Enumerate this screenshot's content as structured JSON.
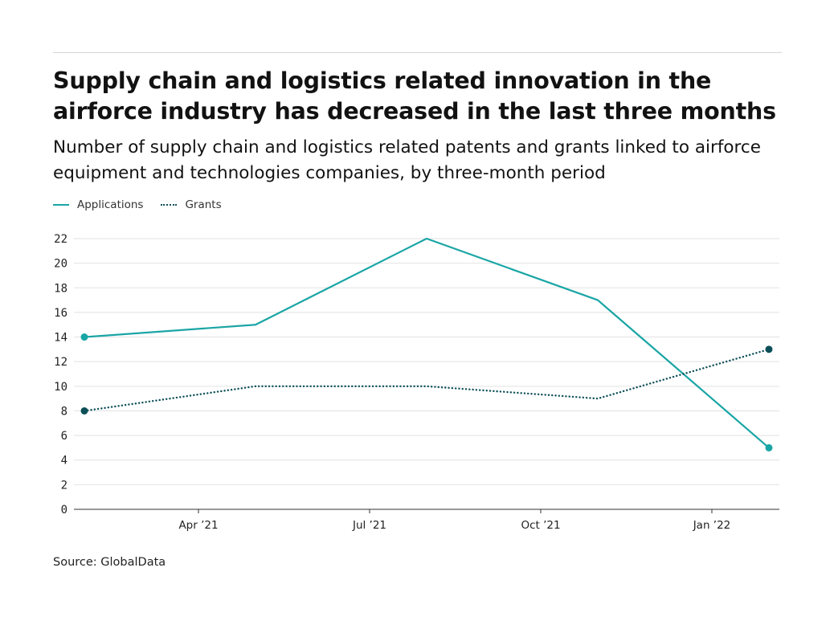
{
  "title": "Supply chain and logistics related innovation in the airforce industry has decreased in the last three months",
  "subtitle": "Number of supply chain and logistics related patents and grants linked to airforce equipment and technologies companies, by three-month period",
  "source": "Source: GlobalData",
  "colors": {
    "applications": "#1aa5a5",
    "grants": "#0d4f58",
    "grid": "#e2e2e2",
    "axis": "#333333"
  },
  "chart_data": {
    "type": "line",
    "x": [
      "2021-02",
      "2021-05",
      "2021-08",
      "2021-11",
      "2022-02"
    ],
    "series": [
      {
        "name": "Applications",
        "style": "solid",
        "values": [
          14,
          15,
          22,
          17,
          5
        ]
      },
      {
        "name": "Grants",
        "style": "dotted",
        "values": [
          8,
          10,
          10,
          9,
          13
        ]
      }
    ],
    "x_tick_labels": [
      "Apr •21",
      "Jul •21",
      "Oct •21",
      "Jan •22"
    ],
    "x_tick_dates": [
      "2021-04",
      "2021-07",
      "2021-10",
      "2022-01"
    ],
    "y_ticks": [
      0,
      2,
      4,
      6,
      8,
      10,
      12,
      14,
      16,
      18,
      20,
      22
    ],
    "ylim": [
      0,
      22
    ],
    "grid": true,
    "legend_position": "top-left",
    "xlabel": "",
    "ylabel": ""
  }
}
